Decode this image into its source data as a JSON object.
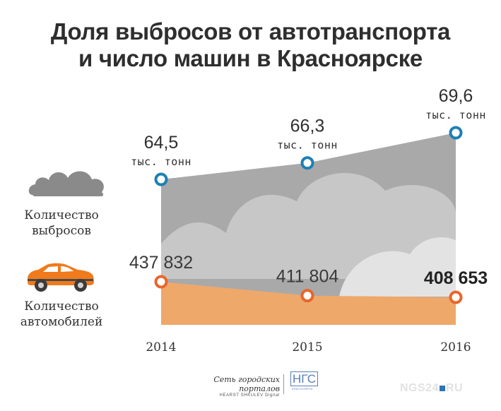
{
  "title": {
    "line1": "Доля выбросов от автотранспорта",
    "line2": "и число машин в Красноярске"
  },
  "legend": {
    "emissions_label_1": "Количество",
    "emissions_label_2": "выбросов",
    "cars_label_1": "Количество",
    "cars_label_2": "автомобилей"
  },
  "colors": {
    "emissions_marker": "#1d7fb3",
    "cars_marker": "#e8662a",
    "cars_area": "#eea86a",
    "emissions_area": "#a9a9a9",
    "cloud_light": "#c7c7c7",
    "cloud_lighter": "#e3e3e3",
    "legend_cloud": "#8a8a8a",
    "legend_car": "#f07a1c"
  },
  "icons": [
    "cloud-icon",
    "car-icon"
  ],
  "chart_data": {
    "type": "area",
    "categories": [
      "2014",
      "2015",
      "2016"
    ],
    "series": [
      {
        "name": "Количество выбросов",
        "values": [
          64.5,
          66.3,
          69.6
        ],
        "labels": [
          "64,5",
          "66,3",
          "69,6"
        ],
        "unit": "тыс. тонн"
      },
      {
        "name": "Количество автомобилей",
        "values": [
          437832,
          411804,
          408653
        ],
        "labels": [
          "437 832",
          "411 804",
          "408 653"
        ],
        "highlight_index": 2
      }
    ]
  },
  "footer": {
    "portal_line1": "Сеть городских порталов",
    "portal_line2": "HEARST SHKULEV Digital",
    "ngs_logo": "НГС",
    "ngs_city": "КРАСНОЯРСК",
    "watermark_left": "NGS24",
    "watermark_right": "RU"
  }
}
